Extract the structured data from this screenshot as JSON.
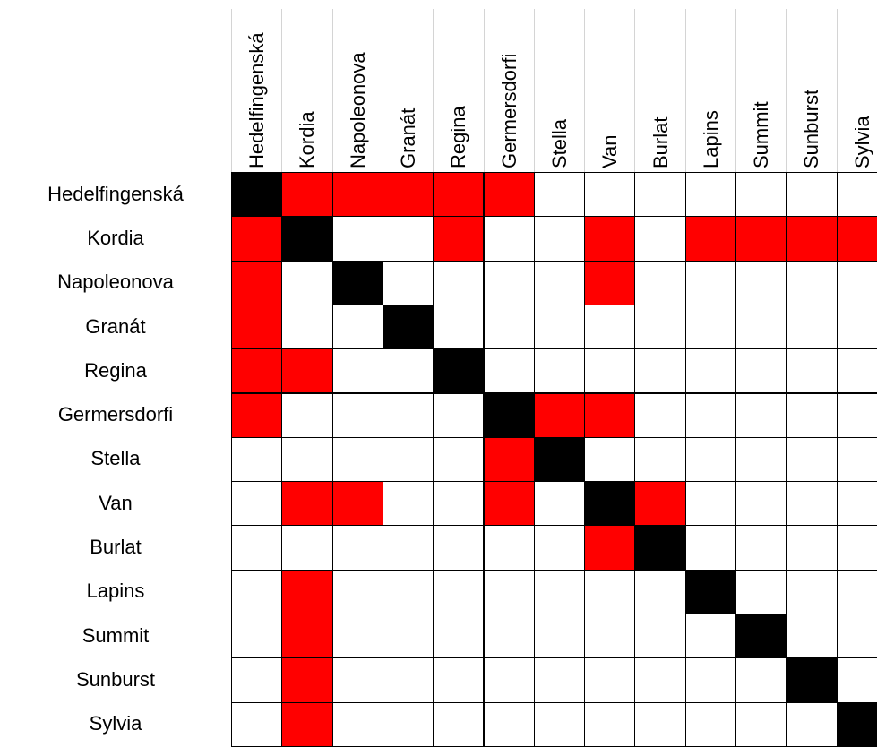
{
  "chart_data": {
    "type": "heatmap",
    "title": "",
    "xlabel": "",
    "ylabel": "",
    "varieties": [
      "Hedelfingenská",
      "Kordia",
      "Napoleonova",
      "Granát",
      "Regina",
      "Germersdorfi",
      "Stella",
      "Van",
      "Burlat",
      "Lapins",
      "Summit",
      "Sunburst",
      "Sylvia"
    ],
    "legend_encoding": {
      "0": "white",
      "1": "red",
      "2": "black"
    },
    "colors": {
      "empty": "#ffffff",
      "marked": "#ff0000",
      "diagonal": "#000000",
      "grid": "#000000"
    },
    "matrix": [
      [
        2,
        1,
        1,
        1,
        1,
        1,
        0,
        0,
        0,
        0,
        0,
        0,
        0
      ],
      [
        1,
        2,
        0,
        0,
        1,
        0,
        0,
        1,
        0,
        1,
        1,
        1,
        1
      ],
      [
        1,
        0,
        2,
        0,
        0,
        0,
        0,
        1,
        0,
        0,
        0,
        0,
        0
      ],
      [
        1,
        0,
        0,
        2,
        0,
        0,
        0,
        0,
        0,
        0,
        0,
        0,
        0
      ],
      [
        1,
        1,
        0,
        0,
        2,
        0,
        0,
        0,
        0,
        0,
        0,
        0,
        0
      ],
      [
        1,
        0,
        0,
        0,
        0,
        2,
        1,
        1,
        0,
        0,
        0,
        0,
        0
      ],
      [
        0,
        0,
        0,
        0,
        0,
        1,
        2,
        0,
        0,
        0,
        0,
        0,
        0
      ],
      [
        0,
        1,
        1,
        0,
        0,
        1,
        0,
        2,
        1,
        0,
        0,
        0,
        0
      ],
      [
        0,
        0,
        0,
        0,
        0,
        0,
        0,
        1,
        2,
        0,
        0,
        0,
        0
      ],
      [
        0,
        1,
        0,
        0,
        0,
        0,
        0,
        0,
        0,
        2,
        0,
        0,
        0
      ],
      [
        0,
        1,
        0,
        0,
        0,
        0,
        0,
        0,
        0,
        0,
        2,
        0,
        0
      ],
      [
        0,
        1,
        0,
        0,
        0,
        0,
        0,
        0,
        0,
        0,
        0,
        2,
        0
      ],
      [
        0,
        1,
        0,
        0,
        0,
        0,
        0,
        0,
        0,
        0,
        0,
        0,
        2
      ]
    ]
  }
}
